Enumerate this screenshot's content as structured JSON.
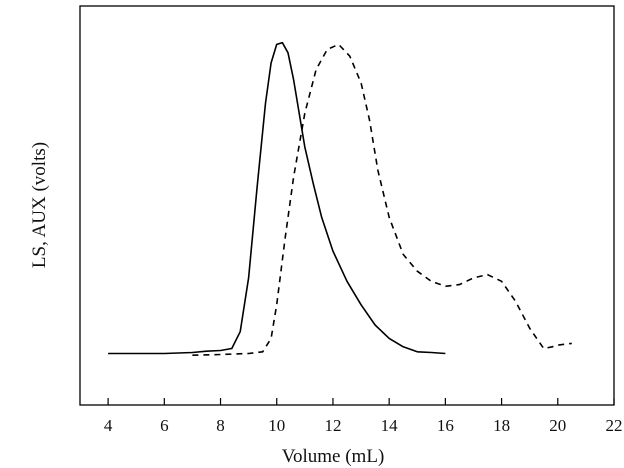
{
  "chart_data": {
    "type": "line",
    "title": "",
    "xlabel": "Volume (mL)",
    "ylabel": "LS, AUX (volts)",
    "xlim": [
      3,
      22
    ],
    "ylim": [
      0,
      1
    ],
    "x_ticks": [
      4,
      6,
      8,
      10,
      12,
      14,
      16,
      18,
      20,
      22
    ],
    "y_ticks": [],
    "grid": false,
    "legend": "none",
    "series": [
      {
        "style": "solid",
        "color": "#000000",
        "points": [
          [
            4.0,
            0.055
          ],
          [
            5.0,
            0.055
          ],
          [
            6.0,
            0.055
          ],
          [
            7.0,
            0.058
          ],
          [
            7.5,
            0.062
          ],
          [
            8.0,
            0.064
          ],
          [
            8.4,
            0.07
          ],
          [
            8.7,
            0.12
          ],
          [
            9.0,
            0.28
          ],
          [
            9.3,
            0.55
          ],
          [
            9.6,
            0.8
          ],
          [
            9.8,
            0.92
          ],
          [
            10.0,
            0.975
          ],
          [
            10.2,
            0.98
          ],
          [
            10.4,
            0.95
          ],
          [
            10.6,
            0.87
          ],
          [
            10.8,
            0.77
          ],
          [
            11.0,
            0.67
          ],
          [
            11.3,
            0.56
          ],
          [
            11.6,
            0.46
          ],
          [
            12.0,
            0.36
          ],
          [
            12.5,
            0.27
          ],
          [
            13.0,
            0.2
          ],
          [
            13.5,
            0.14
          ],
          [
            14.0,
            0.1
          ],
          [
            14.5,
            0.075
          ],
          [
            15.0,
            0.06
          ],
          [
            15.5,
            0.058
          ],
          [
            16.0,
            0.055
          ]
        ]
      },
      {
        "style": "dashed",
        "color": "#000000",
        "points": [
          [
            7.0,
            0.05
          ],
          [
            8.0,
            0.052
          ],
          [
            9.0,
            0.055
          ],
          [
            9.5,
            0.06
          ],
          [
            9.8,
            0.1
          ],
          [
            10.0,
            0.2
          ],
          [
            10.3,
            0.4
          ],
          [
            10.6,
            0.58
          ],
          [
            11.0,
            0.77
          ],
          [
            11.4,
            0.9
          ],
          [
            11.8,
            0.96
          ],
          [
            12.2,
            0.975
          ],
          [
            12.6,
            0.94
          ],
          [
            13.0,
            0.86
          ],
          [
            13.3,
            0.75
          ],
          [
            13.6,
            0.6
          ],
          [
            14.0,
            0.46
          ],
          [
            14.5,
            0.35
          ],
          [
            15.0,
            0.3
          ],
          [
            15.5,
            0.27
          ],
          [
            16.0,
            0.255
          ],
          [
            16.5,
            0.26
          ],
          [
            17.0,
            0.28
          ],
          [
            17.5,
            0.29
          ],
          [
            18.0,
            0.27
          ],
          [
            18.5,
            0.21
          ],
          [
            19.0,
            0.13
          ],
          [
            19.5,
            0.07
          ],
          [
            19.8,
            0.075
          ],
          [
            20.0,
            0.08
          ],
          [
            20.5,
            0.085
          ]
        ]
      }
    ]
  }
}
